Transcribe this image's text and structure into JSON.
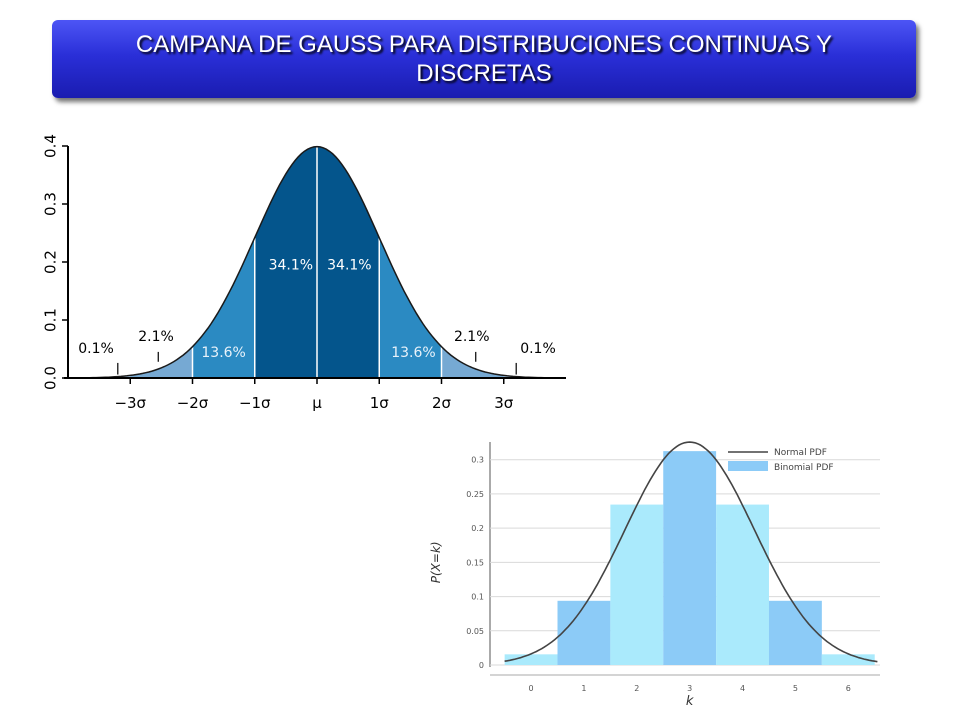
{
  "title": "CAMPANA DE GAUSS PARA DISTRIBUCIONES CONTINUAS Y DISCRETAS",
  "chart_data": [
    {
      "type": "area",
      "x_tick_labels": [
        "−3σ",
        "−2σ",
        "−1σ",
        "μ",
        "1σ",
        "2σ",
        "3σ"
      ],
      "y_ticks": [
        0.0,
        0.1,
        0.2,
        0.3,
        0.4
      ],
      "y_tick_labels": [
        "0.0",
        "0.1",
        "0.2",
        "0.3",
        "0.4"
      ],
      "ylim": [
        0,
        0.4
      ],
      "xlim": [
        -4,
        4
      ],
      "regions": [
        {
          "from": -3,
          "to": -2,
          "label": "2.1%",
          "color": "#76a9d3"
        },
        {
          "from": -2,
          "to": -1,
          "label": "13.6%",
          "color": "#2b8ac2"
        },
        {
          "from": -1,
          "to": 0,
          "label": "34.1%",
          "color": "#04558c"
        },
        {
          "from": 0,
          "to": 1,
          "label": "34.1%",
          "color": "#04558c"
        },
        {
          "from": 1,
          "to": 2,
          "label": "13.6%",
          "color": "#2b8ac2"
        },
        {
          "from": 2,
          "to": 3,
          "label": "2.1%",
          "color": "#76a9d3"
        }
      ],
      "tails": [
        {
          "side": "left",
          "label": "0.1%"
        },
        {
          "side": "right",
          "label": "0.1%"
        }
      ]
    },
    {
      "type": "bar",
      "x": [
        0,
        1,
        2,
        3,
        4,
        5,
        6
      ],
      "x_tick_labels": [
        "0",
        "1",
        "2",
        "3",
        "4",
        "5",
        "6"
      ],
      "xlabel": "k",
      "ylabel": "P(X=k)",
      "y_ticks": [
        0,
        0.05,
        0.1,
        0.15,
        0.2,
        0.25,
        0.3
      ],
      "y_tick_labels": [
        "0",
        "0.05",
        "0.1",
        "0.15",
        "0.2",
        "0.25",
        "0.3"
      ],
      "ylim": [
        0,
        0.32
      ],
      "series": [
        {
          "name": "Binomial PDF",
          "values": [
            0.0156,
            0.0938,
            0.2344,
            0.3125,
            0.2344,
            0.0938,
            0.0156
          ]
        },
        {
          "name": "Normal PDF",
          "curve": "normal",
          "mean": 3,
          "sd": 1.2247
        }
      ],
      "legend": {
        "entries": [
          "Normal PDF",
          "Binomial PDF"
        ],
        "position": "top-right"
      },
      "colors": {
        "bar_light": "#aaeafc",
        "bar_dark": "#8ccbf7",
        "curve": "#444444"
      }
    }
  ]
}
